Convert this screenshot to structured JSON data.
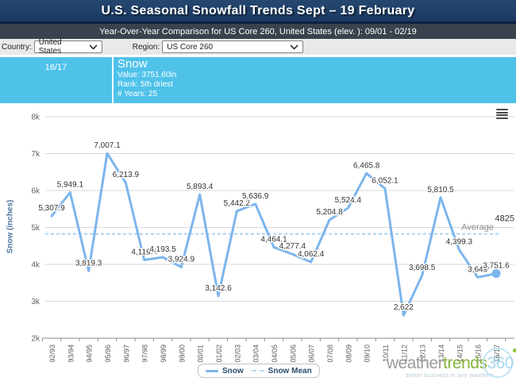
{
  "header": {
    "title": "U.S. Seasonal Snowfall Trends Sept – 19 February",
    "subtitle": "Year-Over-Year Comparison for US Core 260, United States (elev. ): 09/01 - 02/19"
  },
  "controls": {
    "country_label": "Country:",
    "country_value": "United States",
    "region_label": "Region:",
    "region_value": "US Core 260"
  },
  "tooltip": {
    "season": "16/17",
    "series": "Snow",
    "value": "Value: 3751.60in",
    "rank": "Rank: 5th driest",
    "years": "# Years: 25"
  },
  "chart_data": {
    "type": "line",
    "title": "",
    "ylabel": "Snow (inches)",
    "xlabel": "",
    "ylim": [
      2000,
      8000
    ],
    "yticks": [
      "8k",
      "7k",
      "6k",
      "5k",
      "4k",
      "3k",
      "2k"
    ],
    "grid": true,
    "legend_position": "bottom-center",
    "x": [
      "92/93",
      "93/94",
      "94/95",
      "95/96",
      "96/97",
      "97/98",
      "98/99",
      "99/00",
      "00/01",
      "01/02",
      "02/03",
      "03/04",
      "04/05",
      "05/06",
      "06/07",
      "07/08",
      "08/09",
      "09/10",
      "10/11",
      "11/12",
      "12/13",
      "13/14",
      "14/15",
      "15/16",
      "16/17"
    ],
    "series": [
      {
        "name": "Snow",
        "color": "#7cb5ec",
        "values": [
          5307.9,
          5949.1,
          3819.3,
          7007.1,
          6213.9,
          4119.4,
          4193.5,
          3924.9,
          5893.4,
          3142.6,
          5442.2,
          5636.9,
          4464.1,
          4277.4,
          4062.4,
          5204.8,
          5524.4,
          6465.8,
          6052.1,
          2622,
          3698.5,
          5810.5,
          4399.3,
          3649,
          3751.6
        ]
      }
    ],
    "point_labels": [
      "5,307.9",
      "5,949.1",
      "3,819.3",
      "7,007.1",
      "6,213.9",
      "4,119.4",
      "4,193.5",
      "3,924.9",
      "5,893.4",
      "3,142.6",
      "5,442.2",
      "5,636.9",
      "4,464.1",
      "4,277.4",
      "4,062.4",
      "5,204.8",
      "5,524.4",
      "6,465.8",
      "6,052.1",
      "2,622",
      "3,698.5",
      "5,810.5",
      "4,399.3",
      "3,649",
      "3,751.6"
    ],
    "selected_point_index": 24,
    "mean_line": {
      "name": "Snow Mean",
      "value": 4825,
      "value_label": "4825",
      "annotation": "Average",
      "color": "#abd4f2"
    },
    "legend": [
      {
        "label": "Snow",
        "style": "solid"
      },
      {
        "label": "Snow Mean",
        "style": "dashed"
      }
    ]
  },
  "branding": {
    "word1": "weather",
    "word2": "trends",
    "word3": "360",
    "tagline": "better business in any weather*"
  },
  "colors": {
    "header_bg": "#1e3c69",
    "subheader_bg": "#39424d",
    "controls_bg": "#e9e9ea",
    "band_bg": "#4fc2ea",
    "series_line": "#7cb5ec",
    "mean_line": "#abd4f2",
    "grid": "#d8d8d8",
    "axis_text": "#606060",
    "data_label_text": "#333333",
    "legend_text": "#274b6d",
    "logo_gray": "#9b9b9b",
    "logo_green": "#86b43c",
    "logo_blue": "#a6d8ee"
  }
}
